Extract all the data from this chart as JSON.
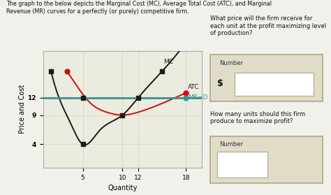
{
  "title_text": "The graph to the below depicts the Marginal Cost (MC), Average Total Cost (ATC), and Marginal\nRevenue (MR) curves for a perfectly (or purely) competitive firm.",
  "xlabel": "Quantity",
  "ylabel": "Price and Cost",
  "yticks": [
    4,
    9,
    12
  ],
  "xticks": [
    5,
    10,
    12,
    18
  ],
  "xlim": [
    0,
    20
  ],
  "ylim": [
    0,
    20
  ],
  "mr_y": 12,
  "mc_color": "#1a1a1a",
  "atc_color": "#cc1111",
  "mr_color": "#3a9090",
  "bg_color": "#f2f0eb",
  "plot_bg": "#ebebdf",
  "grid_color": "#d8d8cc",
  "q1_text": "What price will the firm receive for\neach unit at the profit maximizing level\nof production?",
  "q2_text": "How many units should this firm\nproduce to maximize profit?",
  "number_label": "Number",
  "dollar_sign": "$",
  "box_bg": "#e0dcc8",
  "box_border": "#aaa888",
  "white": "#ffffff"
}
